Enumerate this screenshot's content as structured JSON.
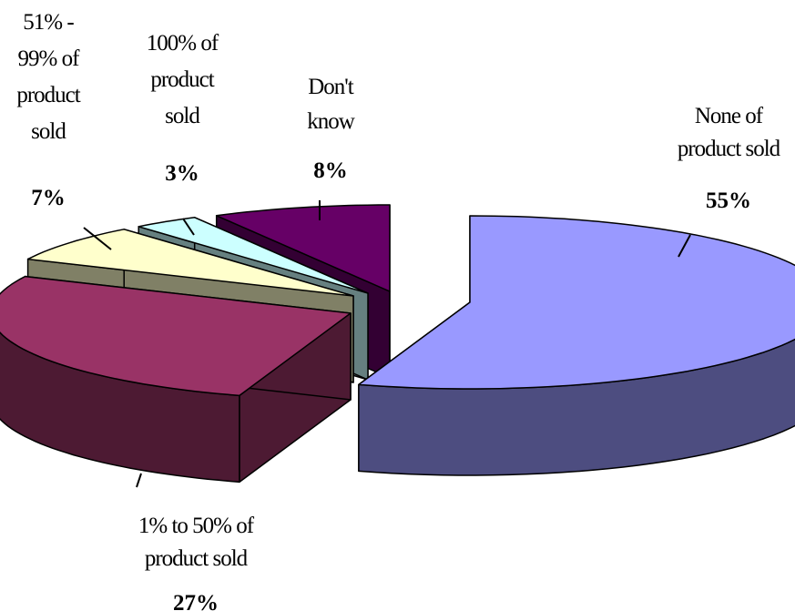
{
  "chart_data": {
    "type": "pie",
    "three_d": true,
    "exploded": true,
    "legend": "none",
    "slices": [
      {
        "label_lines": [
          "None of",
          "product sold"
        ],
        "value": 55,
        "value_label": "55%",
        "color_top": "#9999FF",
        "color_side": "#4D4D80"
      },
      {
        "label_lines": [
          "1% to 50% of",
          "product sold"
        ],
        "value": 27,
        "value_label": "27%",
        "color_top": "#993366",
        "color_side": "#4D1A33"
      },
      {
        "label_lines": [
          "51% -",
          "99% of",
          "product",
          "sold"
        ],
        "value": 7,
        "value_label": "7%",
        "color_top": "#FFFFCC",
        "color_side": "#808066"
      },
      {
        "label_lines": [
          "100% of",
          "product",
          "sold"
        ],
        "value": 3,
        "value_label": "3%",
        "color_top": "#CCFFFF",
        "color_side": "#668080"
      },
      {
        "label_lines": [
          "Don't",
          "know"
        ],
        "value": 8,
        "value_label": "8%",
        "color_top": "#660066",
        "color_side": "#330033"
      }
    ]
  }
}
